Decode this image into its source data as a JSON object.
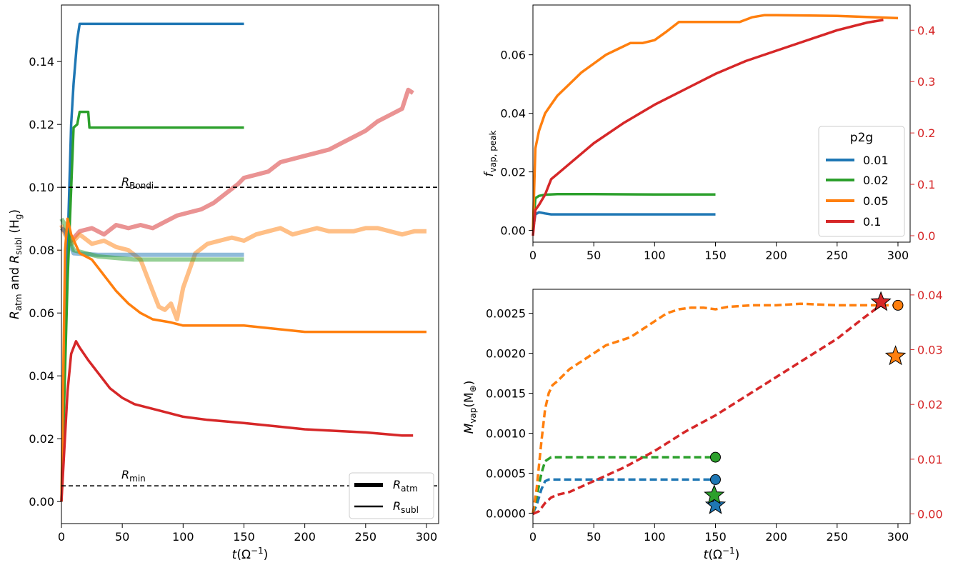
{
  "figure": {
    "left_ylabel_main": "R",
    "left_ylabel_sub1": "atm",
    "left_ylabel_mid": " and ",
    "left_ylabel_sub2": "subl",
    "left_ylabel_end": " (H",
    "left_ylabel_sub3": "g",
    "left_ylabel_close": ")",
    "x_label_main": "t",
    "x_label_paren": "(Ω",
    "x_label_sup": "−1",
    "x_label_close": ")",
    "tr_ylabel_main": "f",
    "tr_ylabel_sub": "vap, peak",
    "br_ylabel_main": "M",
    "br_ylabel_sub": "vap",
    "br_ylabel_paren": "(M",
    "br_ylabel_sub2": "⊕",
    "br_ylabel_close": ")",
    "r_bondi_main": "R",
    "r_bondi_sub": "Bondi",
    "r_min_main": "R",
    "r_min_sub": "min",
    "legend_left": {
      "atm_main": "R",
      "atm_sub": "atm",
      "subl_main": "R",
      "subl_sub": "subl"
    },
    "legend_right": {
      "title": "p2g",
      "entries": [
        "0.01",
        "0.02",
        "0.05",
        "0.1"
      ]
    }
  },
  "colors": {
    "p001": "#1f77b4",
    "p002": "#2ca02c",
    "p005": "#ff7f0e",
    "p01": "#d62728"
  },
  "chart_data": [
    {
      "type": "line",
      "name": "left",
      "xlim": [
        0,
        310
      ],
      "ylim": [
        -0.007,
        0.158
      ],
      "xticks": [
        0,
        50,
        100,
        150,
        200,
        250,
        300
      ],
      "yticks": [
        0.0,
        0.02,
        0.04,
        0.06,
        0.08,
        0.1,
        0.12,
        0.14
      ],
      "ytick_labels": [
        "0.00",
        "0.02",
        "0.04",
        "0.06",
        "0.08",
        "0.10",
        "0.12",
        "0.14"
      ],
      "hlines": {
        "r_bondi": 0.1,
        "r_min": 0.005
      },
      "series": [
        {
          "kind": "atm",
          "color": "p01",
          "x": [
            0,
            3,
            8,
            15,
            25,
            35,
            45,
            55,
            65,
            75,
            85,
            95,
            105,
            115,
            125,
            135,
            145,
            150,
            160,
            170,
            180,
            190,
            200,
            210,
            220,
            230,
            240,
            250,
            260,
            270,
            280,
            285,
            289
          ],
          "y": [
            0.087,
            0.086,
            0.083,
            0.086,
            0.087,
            0.085,
            0.088,
            0.087,
            0.088,
            0.087,
            0.089,
            0.091,
            0.092,
            0.093,
            0.095,
            0.098,
            0.101,
            0.103,
            0.104,
            0.105,
            0.108,
            0.109,
            0.11,
            0.111,
            0.112,
            0.114,
            0.116,
            0.118,
            0.121,
            0.123,
            0.125,
            0.131,
            0.13
          ]
        },
        {
          "kind": "atm",
          "color": "p005",
          "x": [
            0,
            3,
            8,
            15,
            25,
            35,
            45,
            55,
            65,
            70,
            75,
            80,
            85,
            90,
            95,
            100,
            110,
            120,
            130,
            140,
            150,
            160,
            170,
            180,
            190,
            200,
            210,
            220,
            230,
            240,
            250,
            260,
            270,
            280,
            290,
            300
          ],
          "y": [
            0.088,
            0.085,
            0.082,
            0.085,
            0.082,
            0.083,
            0.081,
            0.08,
            0.077,
            0.072,
            0.067,
            0.062,
            0.061,
            0.063,
            0.058,
            0.068,
            0.079,
            0.082,
            0.083,
            0.084,
            0.083,
            0.085,
            0.086,
            0.087,
            0.085,
            0.086,
            0.087,
            0.086,
            0.086,
            0.086,
            0.087,
            0.087,
            0.086,
            0.085,
            0.086,
            0.086
          ]
        },
        {
          "kind": "atm",
          "color": "p001",
          "x": [
            0,
            3,
            10,
            30,
            60,
            100,
            150
          ],
          "y": [
            0.087,
            0.086,
            0.079,
            0.0785,
            0.0785,
            0.0785,
            0.0785
          ]
        },
        {
          "kind": "atm",
          "color": "p002",
          "x": [
            0,
            3,
            10,
            30,
            60,
            100,
            150
          ],
          "y": [
            0.09,
            0.088,
            0.08,
            0.078,
            0.077,
            0.077,
            0.077
          ]
        },
        {
          "kind": "subl",
          "color": "p001",
          "x": [
            0,
            5,
            8,
            10,
            13,
            15,
            150
          ],
          "y": [
            0.0,
            0.08,
            0.12,
            0.133,
            0.147,
            0.152,
            0.152
          ]
        },
        {
          "kind": "subl",
          "color": "p002",
          "x": [
            0,
            5,
            10,
            13,
            15,
            22,
            23,
            150
          ],
          "y": [
            0.0,
            0.07,
            0.119,
            0.12,
            0.124,
            0.124,
            0.119,
            0.119
          ]
        },
        {
          "kind": "subl",
          "color": "p005",
          "x": [
            0,
            3,
            5,
            8,
            15,
            25,
            35,
            45,
            55,
            65,
            75,
            90,
            100,
            150,
            200,
            250,
            300
          ],
          "y": [
            0.0,
            0.08,
            0.09,
            0.085,
            0.079,
            0.077,
            0.072,
            0.067,
            0.063,
            0.06,
            0.058,
            0.057,
            0.056,
            0.056,
            0.054,
            0.054,
            0.054
          ]
        },
        {
          "kind": "subl",
          "color": "p01",
          "x": [
            0,
            5,
            8,
            12,
            15,
            22,
            30,
            40,
            50,
            60,
            70,
            80,
            100,
            120,
            150,
            200,
            250,
            280,
            289
          ],
          "y": [
            0.0,
            0.035,
            0.047,
            0.051,
            0.049,
            0.045,
            0.041,
            0.036,
            0.033,
            0.031,
            0.03,
            0.029,
            0.027,
            0.026,
            0.025,
            0.023,
            0.022,
            0.021,
            0.021
          ]
        }
      ]
    },
    {
      "type": "line",
      "name": "top-right",
      "xlim": [
        0,
        310
      ],
      "ylim": [
        -0.004,
        0.077
      ],
      "ylim_right": [
        -0.0125,
        0.449
      ],
      "xticks": [
        0,
        50,
        100,
        150,
        200,
        250,
        300
      ],
      "yticks": [
        0.0,
        0.02,
        0.04,
        0.06
      ],
      "ytick_labels": [
        "0.00",
        "0.02",
        "0.04",
        "0.06"
      ],
      "yticks_right": [
        0.0,
        0.1,
        0.2,
        0.3,
        0.4
      ],
      "ytick_labels_right": [
        "0.0",
        "0.1",
        "0.2",
        "0.3",
        "0.4"
      ],
      "series": [
        {
          "name": "0.01",
          "color": "p001",
          "axis": "left",
          "x": [
            0,
            2,
            5,
            10,
            15,
            50,
            100,
            150
          ],
          "y": [
            0.0,
            0.0055,
            0.0062,
            0.0058,
            0.0055,
            0.0055,
            0.0055,
            0.0055
          ]
        },
        {
          "name": "0.02",
          "color": "p002",
          "axis": "left",
          "x": [
            0,
            2,
            5,
            10,
            20,
            50,
            100,
            150
          ],
          "y": [
            0.0,
            0.011,
            0.0118,
            0.0122,
            0.0124,
            0.0124,
            0.0123,
            0.0123
          ]
        },
        {
          "name": "0.05",
          "color": "p005",
          "axis": "left",
          "x": [
            0,
            2,
            5,
            10,
            15,
            20,
            30,
            40,
            50,
            60,
            70,
            80,
            90,
            100,
            110,
            120,
            140,
            150,
            170,
            180,
            190,
            200,
            250,
            300
          ],
          "y": [
            0.0,
            0.028,
            0.034,
            0.04,
            0.043,
            0.046,
            0.05,
            0.054,
            0.057,
            0.06,
            0.062,
            0.064,
            0.064,
            0.065,
            0.068,
            0.0712,
            0.0712,
            0.0712,
            0.0712,
            0.0728,
            0.0735,
            0.0735,
            0.0733,
            0.0725
          ]
        },
        {
          "name": "0.1",
          "color": "p01",
          "axis": "right",
          "x": [
            0,
            2,
            5,
            10,
            15,
            20,
            30,
            40,
            50,
            75,
            100,
            125,
            150,
            175,
            200,
            225,
            250,
            275,
            288
          ],
          "y": [
            0.0,
            0.05,
            0.06,
            0.08,
            0.11,
            0.12,
            0.14,
            0.16,
            0.18,
            0.22,
            0.255,
            0.285,
            0.315,
            0.34,
            0.36,
            0.38,
            0.4,
            0.415,
            0.42
          ]
        }
      ],
      "legend": "lower-right"
    },
    {
      "type": "line",
      "name": "bottom-right",
      "xlim": [
        0,
        310
      ],
      "ylim": [
        -0.00013,
        0.0028
      ],
      "ylim_right": [
        -0.00176,
        0.04103
      ],
      "xticks": [
        0,
        50,
        100,
        150,
        200,
        250,
        300
      ],
      "yticks": [
        0.0,
        0.0005,
        0.001,
        0.0015,
        0.002,
        0.0025
      ],
      "ytick_labels": [
        "0.0000",
        "0.0005",
        "0.0010",
        "0.0015",
        "0.0020",
        "0.0025"
      ],
      "yticks_right": [
        0.0,
        0.01,
        0.02,
        0.03,
        0.04
      ],
      "ytick_labels_right": [
        "0.00",
        "0.01",
        "0.02",
        "0.03",
        "0.04"
      ],
      "series": [
        {
          "color": "p001",
          "axis": "left",
          "x": [
            0,
            3,
            7,
            10,
            13,
            20,
            50,
            100,
            148
          ],
          "y": [
            0.0,
            0.0001,
            0.0003,
            0.0004,
            0.00042,
            0.00042,
            0.00042,
            0.00042,
            0.00042
          ]
        },
        {
          "color": "p002",
          "axis": "left",
          "x": [
            0,
            3,
            7,
            10,
            15,
            20,
            50,
            100,
            148
          ],
          "y": [
            0.0,
            0.0002,
            0.0005,
            0.00065,
            0.0007,
            0.0007,
            0.0007,
            0.0007,
            0.0007
          ]
        },
        {
          "color": "p005",
          "axis": "left",
          "x": [
            0,
            3,
            7,
            10,
            13,
            16,
            20,
            30,
            40,
            50,
            60,
            70,
            80,
            90,
            100,
            110,
            120,
            130,
            140,
            150,
            160,
            180,
            200,
            220,
            250,
            280,
            300
          ],
          "y": [
            0.0,
            0.0003,
            0.0009,
            0.0013,
            0.0015,
            0.0016,
            0.00165,
            0.0018,
            0.0019,
            0.002,
            0.0021,
            0.00215,
            0.0022,
            0.0023,
            0.0024,
            0.0025,
            0.00255,
            0.00257,
            0.00257,
            0.00255,
            0.00258,
            0.0026,
            0.0026,
            0.00262,
            0.0026,
            0.0026,
            0.0026
          ]
        },
        {
          "color": "p01",
          "axis": "right",
          "x": [
            0,
            5,
            10,
            15,
            20,
            30,
            40,
            50,
            75,
            100,
            125,
            150,
            175,
            200,
            225,
            250,
            270,
            288
          ],
          "y": [
            0.0,
            0.0005,
            0.002,
            0.003,
            0.0035,
            0.004,
            0.005,
            0.006,
            0.0085,
            0.0115,
            0.015,
            0.018,
            0.0215,
            0.025,
            0.0285,
            0.032,
            0.0355,
            0.0385
          ]
        }
      ],
      "circles": [
        {
          "color": "p001",
          "axis": "left",
          "x": 150,
          "y": 0.00042
        },
        {
          "color": "p002",
          "axis": "left",
          "x": 150,
          "y": 0.0007
        },
        {
          "color": "p005",
          "axis": "left",
          "x": 300,
          "y": 0.0026
        }
      ],
      "stars": [
        {
          "color": "p001",
          "axis": "right",
          "x": 150,
          "y": 0.0016
        },
        {
          "color": "p002",
          "axis": "right",
          "x": 149,
          "y": 0.0034
        },
        {
          "color": "p005",
          "axis": "right",
          "x": 298,
          "y": 0.0288
        },
        {
          "color": "p01",
          "axis": "right",
          "x": 286,
          "y": 0.0387
        }
      ]
    }
  ]
}
